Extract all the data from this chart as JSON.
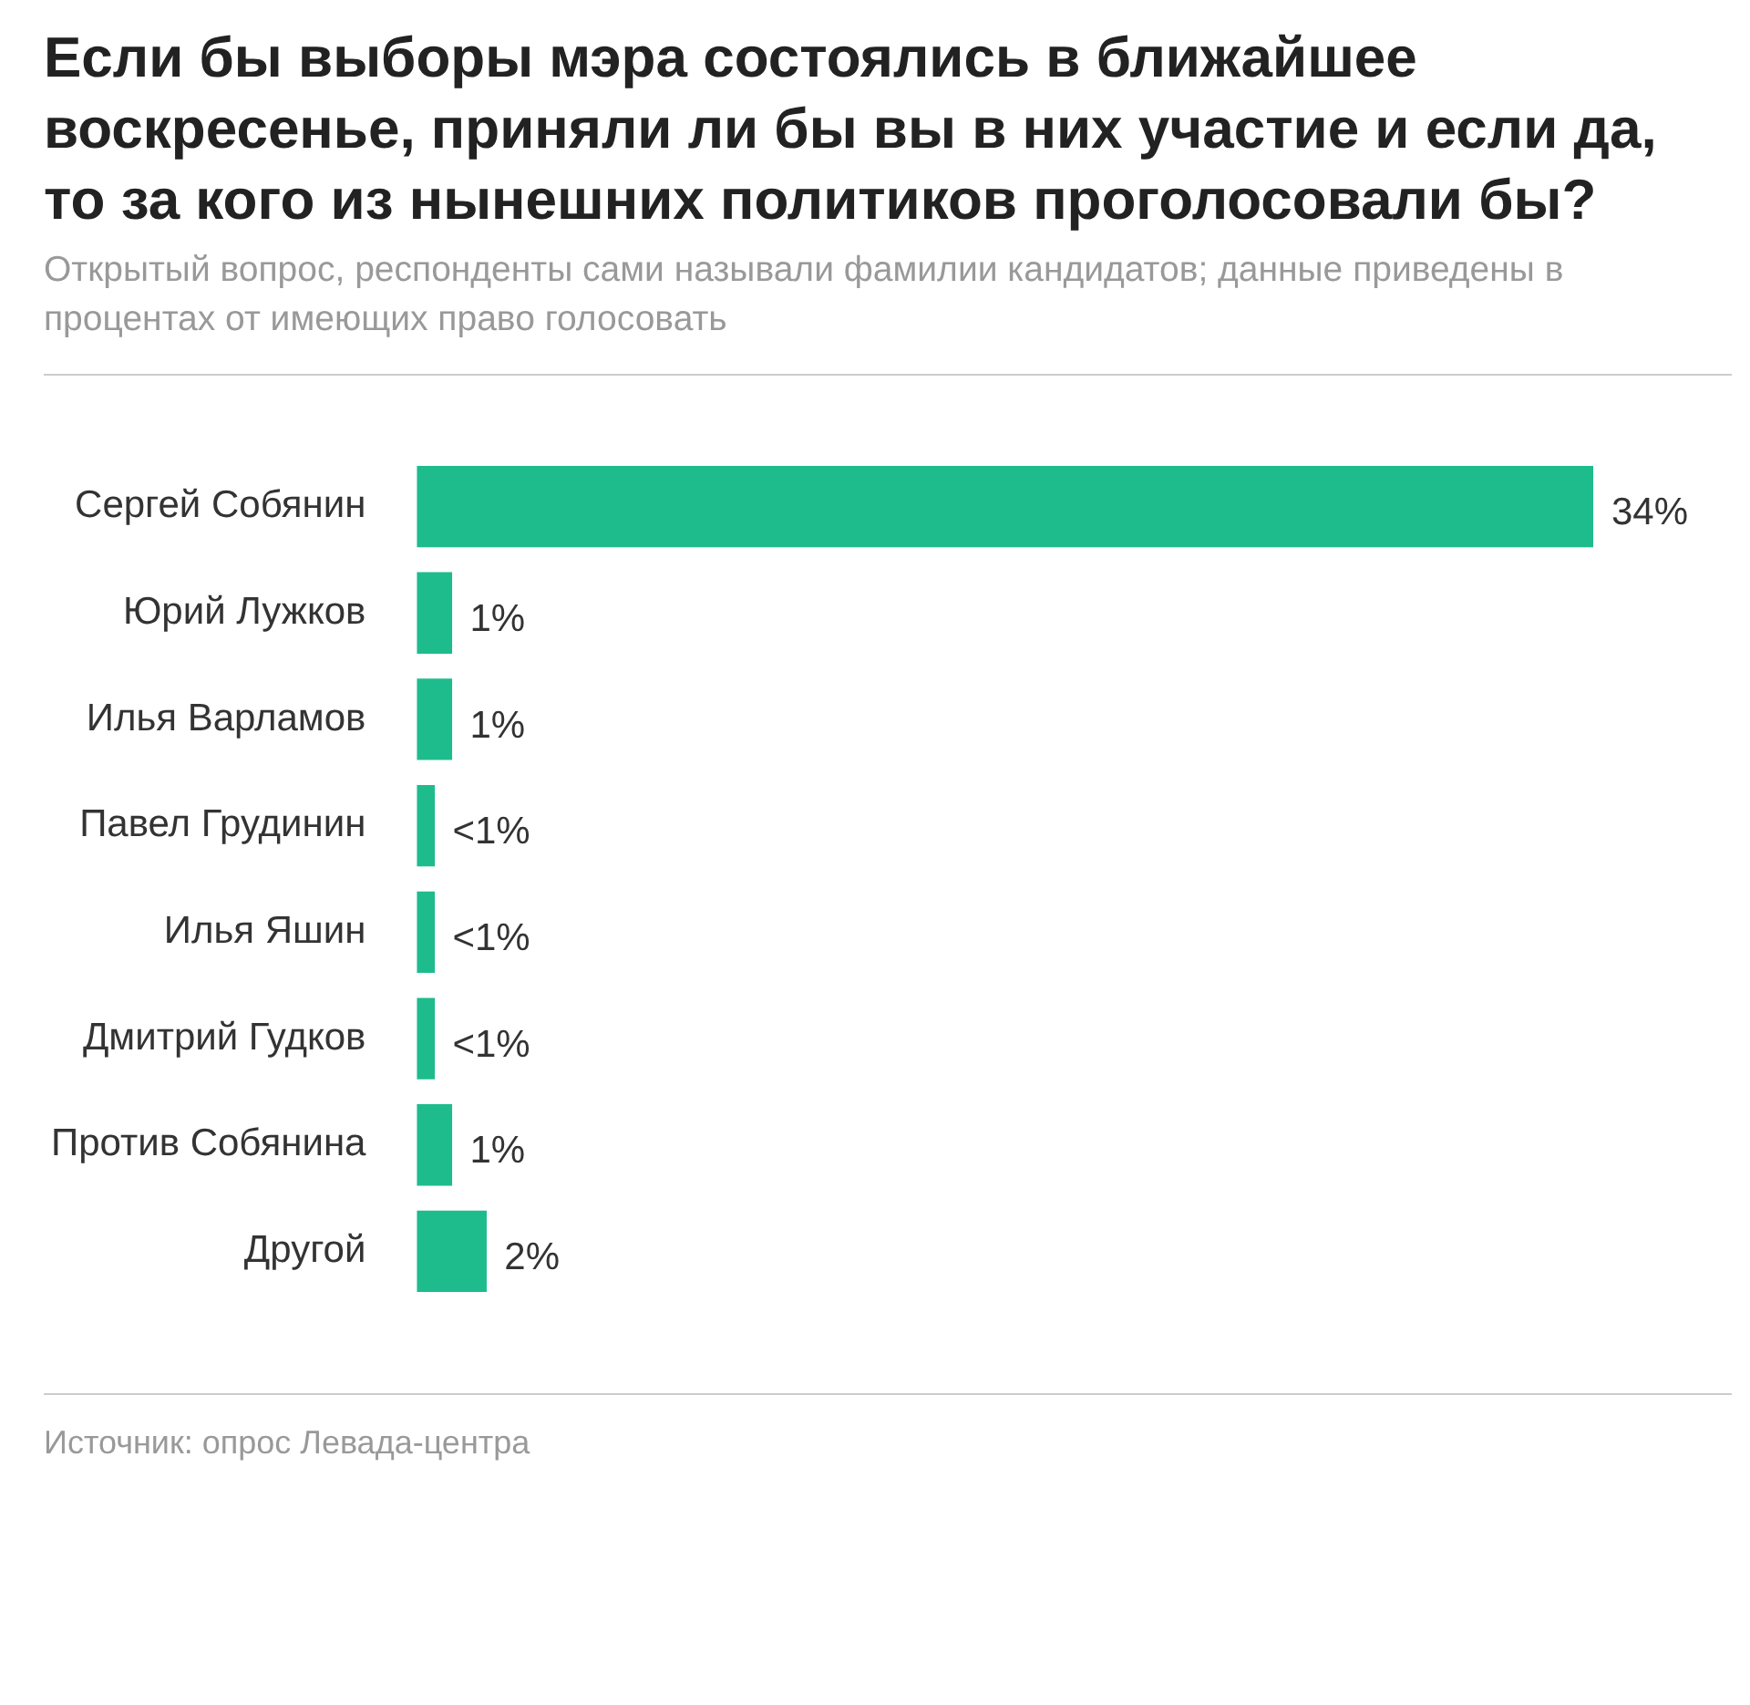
{
  "chart_data": {
    "type": "bar",
    "orientation": "horizontal",
    "title": "Если бы выборы мэра состоялись в ближайшее воскресенье, приняли ли бы вы в них участие и если да, то за кого из нынешних политиков проголосовали бы?",
    "subtitle": "Открытый вопрос, респонденты сами называли фамилии кандидатов; данные приведены в процентах от имеющих право голосовать",
    "categories": [
      "Сергей Собянин",
      "Юрий Лужков",
      "Илья Варламов",
      "Павел Грудинин",
      "Илья Яшин",
      "Дмитрий Гудков",
      "Против Собянина",
      "Другой"
    ],
    "values": [
      34,
      1,
      1,
      0.5,
      0.5,
      0.5,
      1,
      2
    ],
    "value_labels": [
      "34%",
      "1%",
      "1%",
      "<1%",
      "<1%",
      "<1%",
      "1%",
      "2%"
    ],
    "color": "#1ebc8c",
    "legend": false,
    "annotations": [
      "Источник: опрос Левада-центра"
    ]
  }
}
